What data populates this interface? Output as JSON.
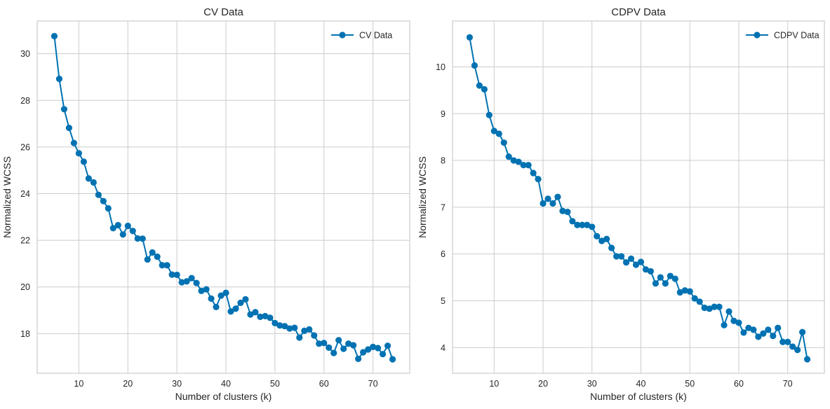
{
  "chart_data": [
    {
      "type": "line",
      "title": "CV Data",
      "xlabel": "Number of clusters (k)",
      "ylabel": "Normalized WCSS",
      "xlim": [
        1.5,
        77.5
      ],
      "ylim": [
        16.3,
        31.4
      ],
      "xticks": [
        10,
        20,
        30,
        40,
        50,
        60,
        70
      ],
      "yticks": [
        18,
        20,
        22,
        24,
        26,
        28,
        30
      ],
      "grid": true,
      "legend_position": "top-right",
      "series": [
        {
          "name": "CV Data",
          "color": "#0072b2",
          "x": [
            5,
            6,
            7,
            8,
            9,
            10,
            11,
            12,
            13,
            14,
            15,
            16,
            17,
            18,
            19,
            20,
            21,
            22,
            23,
            24,
            25,
            26,
            27,
            28,
            29,
            30,
            31,
            32,
            33,
            34,
            35,
            36,
            37,
            38,
            39,
            40,
            41,
            42,
            43,
            44,
            45,
            46,
            47,
            48,
            49,
            50,
            51,
            52,
            53,
            54,
            55,
            56,
            57,
            58,
            59,
            60,
            61,
            62,
            63,
            64,
            65,
            66,
            67,
            68,
            69,
            70,
            71,
            72,
            73,
            74
          ],
          "values": [
            30.75,
            28.92,
            27.62,
            26.82,
            26.17,
            25.73,
            25.37,
            24.65,
            24.48,
            23.95,
            23.68,
            23.37,
            22.52,
            22.65,
            22.25,
            22.62,
            22.4,
            22.08,
            22.07,
            21.18,
            21.48,
            21.3,
            20.93,
            20.93,
            20.53,
            20.52,
            20.2,
            20.24,
            20.38,
            20.17,
            19.83,
            19.9,
            19.5,
            19.14,
            19.63,
            19.75,
            18.95,
            19.07,
            19.32,
            19.47,
            18.82,
            18.92,
            18.72,
            18.75,
            18.68,
            18.45,
            18.35,
            18.32,
            18.22,
            18.25,
            17.83,
            18.12,
            18.18,
            17.92,
            17.57,
            17.6,
            17.4,
            17.17,
            17.72,
            17.35,
            17.57,
            17.5,
            16.92,
            17.2,
            17.32,
            17.43,
            17.38,
            17.12,
            17.48,
            16.9
          ]
        }
      ]
    },
    {
      "type": "line",
      "title": "CDPV Data",
      "xlabel": "Number of clusters (k)",
      "ylabel": "Normalized WCSS",
      "xlim": [
        1.5,
        77.5
      ],
      "ylim": [
        3.45,
        10.98
      ],
      "xticks": [
        10,
        20,
        30,
        40,
        50,
        60,
        70
      ],
      "yticks": [
        4,
        5,
        6,
        7,
        8,
        9,
        10
      ],
      "grid": true,
      "legend_position": "top-right",
      "series": [
        {
          "name": "CDPV Data",
          "color": "#0072b2",
          "x": [
            5,
            6,
            7,
            8,
            9,
            10,
            11,
            12,
            13,
            14,
            15,
            16,
            17,
            18,
            19,
            20,
            21,
            22,
            23,
            24,
            25,
            26,
            27,
            28,
            29,
            30,
            31,
            32,
            33,
            34,
            35,
            36,
            37,
            38,
            39,
            40,
            41,
            42,
            43,
            44,
            45,
            46,
            47,
            48,
            49,
            50,
            51,
            52,
            53,
            54,
            55,
            56,
            57,
            58,
            59,
            60,
            61,
            62,
            63,
            64,
            65,
            66,
            67,
            68,
            69,
            70,
            71,
            72,
            73,
            74
          ],
          "values": [
            10.63,
            10.03,
            9.6,
            9.52,
            8.97,
            8.63,
            8.57,
            8.38,
            8.08,
            8.0,
            7.97,
            7.9,
            7.9,
            7.73,
            7.6,
            7.08,
            7.18,
            7.08,
            7.22,
            6.92,
            6.9,
            6.7,
            6.62,
            6.62,
            6.62,
            6.58,
            6.38,
            6.28,
            6.32,
            6.13,
            5.95,
            5.95,
            5.82,
            5.9,
            5.77,
            5.83,
            5.67,
            5.63,
            5.37,
            5.5,
            5.37,
            5.53,
            5.47,
            5.18,
            5.22,
            5.2,
            5.05,
            4.98,
            4.85,
            4.83,
            4.87,
            4.87,
            4.48,
            4.77,
            4.57,
            4.53,
            4.32,
            4.42,
            4.38,
            4.23,
            4.3,
            4.38,
            4.25,
            4.42,
            4.12,
            4.12,
            4.02,
            3.95,
            4.33,
            3.75
          ]
        }
      ]
    }
  ]
}
